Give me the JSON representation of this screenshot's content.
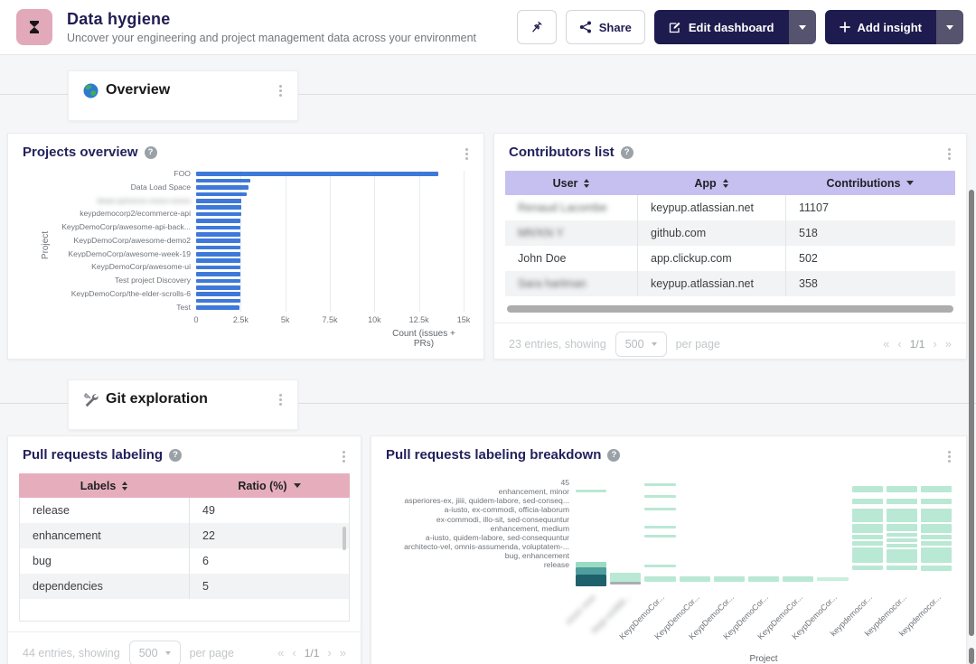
{
  "header": {
    "title": "Data hygiene",
    "subtitle": "Uncover your engineering and project management data across your environment",
    "share_label": "Share",
    "edit_label": "Edit dashboard",
    "add_label": "Add insight"
  },
  "sections": {
    "overview": {
      "label": "Overview"
    },
    "git": {
      "label": "Git exploration"
    }
  },
  "pagination_glyphs": {
    "first": "«",
    "prev": "‹",
    "next": "›",
    "last": "»"
  },
  "projects_overview": {
    "title": "Projects overview",
    "chart_data": {
      "type": "bar",
      "orientation": "horizontal",
      "ylabel": "Project",
      "xlabel": "Count (issues + PRs)",
      "x_ticks": [
        "0",
        "2.5k",
        "5k",
        "7.5k",
        "10k",
        "12.5k",
        "15k"
      ],
      "xmax": 15000,
      "bar_color": "#3e79da",
      "bars": [
        {
          "label": "FOO",
          "value": 13600
        },
        {
          "label": "",
          "value": 3050
        },
        {
          "label": "Data Load Space",
          "value": 2950
        },
        {
          "label": "",
          "value": 2850
        },
        {
          "label": "keyp-up/xxxxx-xxxxx-xxxxx",
          "blurred": true,
          "value": 2530
        },
        {
          "label": "",
          "value": 2515
        },
        {
          "label": "keypdemocorp2/ecommerce-api",
          "value": 2520
        },
        {
          "label": "",
          "value": 2505
        },
        {
          "label": "KeypDemoCorp/awesome-api-back...",
          "value": 2500
        },
        {
          "label": "",
          "value": 2495
        },
        {
          "label": "KeypDemoCorp/awesome-demo2",
          "value": 2495
        },
        {
          "label": "",
          "value": 2490
        },
        {
          "label": "KeypDemoCorp/awesome-week-19",
          "value": 2490
        },
        {
          "label": "",
          "value": 2485
        },
        {
          "label": "KeypDemoCorp/awesome-ui",
          "value": 2485
        },
        {
          "label": "",
          "value": 2480
        },
        {
          "label": "Test project Discovery",
          "value": 2475
        },
        {
          "label": "",
          "value": 2470
        },
        {
          "label": "KeypDemoCorp/the-elder-scrolls-6",
          "value": 2465
        },
        {
          "label": "",
          "value": 2460
        },
        {
          "label": "Test",
          "value": 2455
        }
      ]
    }
  },
  "contributors": {
    "title": "Contributors list",
    "header_bg": "#c6c0f1",
    "columns": [
      {
        "label": "User",
        "sort": "both"
      },
      {
        "label": "App",
        "sort": "both"
      },
      {
        "label": "Contributions",
        "sort": "desc"
      }
    ],
    "rows": [
      {
        "user": "Renaud Lacombe",
        "user_blurred": true,
        "app": "keypup.atlassian.net",
        "contributions": "11107"
      },
      {
        "user": "MN'KN Y",
        "user_blurred": true,
        "app": "github.com",
        "contributions": "518"
      },
      {
        "user": "John Doe",
        "user_blurred": false,
        "app": "app.clickup.com",
        "contributions": "502"
      },
      {
        "user": "Sara hartman",
        "user_blurred": true,
        "app": "keypup.atlassian.net",
        "contributions": "358"
      }
    ],
    "footer": {
      "entries": "23 entries, showing",
      "page_size": "500",
      "per_page": "per page",
      "page": "1/1"
    }
  },
  "pr_labeling": {
    "title": "Pull requests labeling",
    "header_bg": "#e6aebc",
    "columns": [
      {
        "label": "Labels",
        "sort": "both"
      },
      {
        "label": "Ratio (%)",
        "sort": "desc"
      }
    ],
    "rows": [
      {
        "label": "release",
        "ratio": "49"
      },
      {
        "label": "enhancement",
        "ratio": "22"
      },
      {
        "label": "bug",
        "ratio": "6"
      },
      {
        "label": "dependencies",
        "ratio": "5"
      }
    ],
    "footer": {
      "entries": "44 entries, showing",
      "page_size": "500",
      "per_page": "per page",
      "page": "1/1"
    }
  },
  "pr_breakdown": {
    "title": "Pull requests labeling breakdown",
    "chart_data": {
      "type": "heatmap",
      "xlabel": "Project",
      "base_color": "#b9e8d4",
      "y_labels": [
        "45",
        "enhancement, minor",
        "asperiores-ex, jiiii, quidem-labore, sed-conseq...",
        "a-iusto, ex-commodi, officia-laborum",
        "ex-commodi, illo-sit, sed-consequuntur",
        "enhancement, medium",
        "a-iusto, quidem-labore, sed-consequuntur",
        "architecto-vel, omnis-assumenda, voluptatem-...",
        "bug, enhancement",
        "release"
      ],
      "columns": [
        {
          "x": "xxxxx xxxx",
          "x_blurred": true,
          "segments": [
            [
              16,
              3,
              "#b9e8d4"
            ],
            [
              96,
              6,
              "#9adbc4"
            ],
            [
              102,
              8,
              "#4f9e9d"
            ],
            [
              110,
              13,
              "#1e616b"
            ]
          ]
        },
        {
          "x": "keyp-xx/ddd...",
          "x_blurred": true,
          "segments": [
            [
              108,
              10,
              "#b9e8d4"
            ],
            [
              118,
              3,
              "#a9adb2"
            ]
          ]
        },
        {
          "x": "KeypDemoCor...",
          "segments": [
            [
              9,
              3,
              "#b9e8d4"
            ],
            [
              22,
              3,
              "#b9e8d4"
            ],
            [
              36,
              3,
              "#b9e8d4"
            ],
            [
              56,
              3,
              "#b9e8d4"
            ],
            [
              66,
              3,
              "#b9e8d4"
            ],
            [
              99,
              3,
              "#b9e8d4"
            ],
            [
              112,
              6,
              "#b9e8d4"
            ]
          ]
        },
        {
          "x": "KeypDemoCor...",
          "segments": [
            [
              112,
              6,
              "#b9e8d4"
            ]
          ]
        },
        {
          "x": "KeypDemoCor...",
          "segments": [
            [
              112,
              6,
              "#b9e8d4"
            ]
          ]
        },
        {
          "x": "KeypDemoCor...",
          "segments": [
            [
              112,
              6,
              "#b9e8d4"
            ]
          ]
        },
        {
          "x": "KeypDemoCor...",
          "segments": [
            [
              112,
              6,
              "#b9e8d4"
            ]
          ]
        },
        {
          "x": "KeypDemoCor...",
          "segments": [
            [
              113,
              4,
              "#c9eedd"
            ]
          ]
        },
        {
          "x": "keypdemocor...",
          "segments": [
            [
              12,
              7,
              "#b9e8d4"
            ],
            [
              26,
              6,
              "#b9e8d4"
            ],
            [
              37,
              15,
              "#b9e8d4"
            ],
            [
              54,
              10,
              "#b9e8d4"
            ],
            [
              66,
              5,
              "#b9e8d4"
            ],
            [
              73,
              5,
              "#b9e8d4"
            ],
            [
              80,
              17,
              "#b9e8d4"
            ],
            [
              100,
              5,
              "#b9e8d4"
            ]
          ]
        },
        {
          "x": "keypdemocor...",
          "segments": [
            [
              12,
              7,
              "#b9e8d4"
            ],
            [
              26,
              6,
              "#b9e8d4"
            ],
            [
              37,
              15,
              "#b9e8d4"
            ],
            [
              54,
              8,
              "#b9e8d4"
            ],
            [
              64,
              4,
              "#b9e8d4"
            ],
            [
              70,
              4,
              "#b9e8d4"
            ],
            [
              76,
              4,
              "#b9e8d4"
            ],
            [
              82,
              15,
              "#b9e8d4"
            ],
            [
              100,
              5,
              "#b9e8d4"
            ]
          ]
        },
        {
          "x": "keypdemocor...",
          "segments": [
            [
              12,
              7,
              "#b9e8d4"
            ],
            [
              26,
              6,
              "#b9e8d4"
            ],
            [
              37,
              15,
              "#b9e8d4"
            ],
            [
              54,
              10,
              "#b9e8d4"
            ],
            [
              66,
              5,
              "#b9e8d4"
            ],
            [
              73,
              5,
              "#b9e8d4"
            ],
            [
              80,
              17,
              "#b9e8d4"
            ],
            [
              100,
              6,
              "#b9e8d4"
            ]
          ]
        }
      ]
    }
  }
}
